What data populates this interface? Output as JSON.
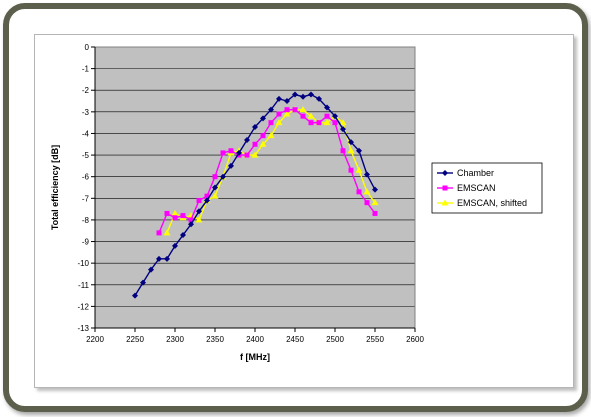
{
  "chart_data": {
    "type": "line",
    "xlabel": "f [MHz]",
    "ylabel": "Total efficiency [dB]",
    "xlim": [
      2200,
      2600
    ],
    "ylim": [
      -13,
      0
    ],
    "xticks": [
      2200,
      2250,
      2300,
      2350,
      2400,
      2450,
      2500,
      2550,
      2600
    ],
    "yticks": [
      0,
      -1,
      -2,
      -3,
      -4,
      -5,
      -6,
      -7,
      -8,
      -9,
      -10,
      -11,
      -12,
      -13
    ],
    "grid": true,
    "legend_position": "right",
    "plot_background": "#c0c0c0",
    "series": [
      {
        "name": "Chamber",
        "color": "#000080",
        "marker": "diamond",
        "x": [
          2250,
          2260,
          2270,
          2280,
          2290,
          2300,
          2310,
          2320,
          2330,
          2340,
          2350,
          2360,
          2370,
          2380,
          2390,
          2400,
          2410,
          2420,
          2430,
          2440,
          2450,
          2460,
          2470,
          2480,
          2490,
          2500,
          2510,
          2520,
          2530,
          2540,
          2550
        ],
        "values": [
          -11.5,
          -10.9,
          -10.3,
          -9.8,
          -9.8,
          -9.2,
          -8.7,
          -8.2,
          -7.6,
          -7.1,
          -6.5,
          -6.0,
          -5.5,
          -4.9,
          -4.3,
          -3.7,
          -3.3,
          -2.9,
          -2.4,
          -2.5,
          -2.2,
          -2.3,
          -2.2,
          -2.4,
          -2.8,
          -3.2,
          -3.8,
          -4.4,
          -4.8,
          -5.9,
          -6.6
        ]
      },
      {
        "name": "EMSCAN",
        "color": "#ff00ff",
        "marker": "square",
        "x": [
          2280,
          2290,
          2300,
          2310,
          2320,
          2330,
          2340,
          2350,
          2360,
          2370,
          2380,
          2390,
          2400,
          2410,
          2420,
          2430,
          2440,
          2450,
          2460,
          2470,
          2480,
          2490,
          2500,
          2510,
          2520,
          2530,
          2540,
          2550
        ],
        "values": [
          -8.6,
          -7.7,
          -7.9,
          -7.8,
          -8.0,
          -7.1,
          -6.9,
          -6.0,
          -4.9,
          -4.8,
          -5.0,
          -5.0,
          -4.5,
          -4.1,
          -3.5,
          -3.1,
          -2.9,
          -2.9,
          -3.2,
          -3.5,
          -3.5,
          -3.2,
          -3.5,
          -4.8,
          -5.7,
          -6.7,
          -7.2,
          -7.7
        ]
      },
      {
        "name": "EMSCAN, shifted",
        "color": "#ffff00",
        "marker": "triangle",
        "x": [
          2290,
          2300,
          2310,
          2320,
          2330,
          2340,
          2350,
          2360,
          2370,
          2380,
          2390,
          2400,
          2410,
          2420,
          2430,
          2440,
          2450,
          2460,
          2470,
          2480,
          2490,
          2500,
          2510,
          2520,
          2530,
          2540,
          2550
        ],
        "values": [
          -8.6,
          -7.7,
          -7.9,
          -7.8,
          -8.0,
          -7.1,
          -6.9,
          -6.0,
          -4.9,
          -4.8,
          -5.0,
          -5.0,
          -4.5,
          -4.1,
          -3.5,
          -3.1,
          -2.9,
          -2.9,
          -3.2,
          -3.5,
          -3.5,
          -3.2,
          -3.5,
          -4.8,
          -5.7,
          -6.7,
          -7.2
        ]
      }
    ]
  }
}
